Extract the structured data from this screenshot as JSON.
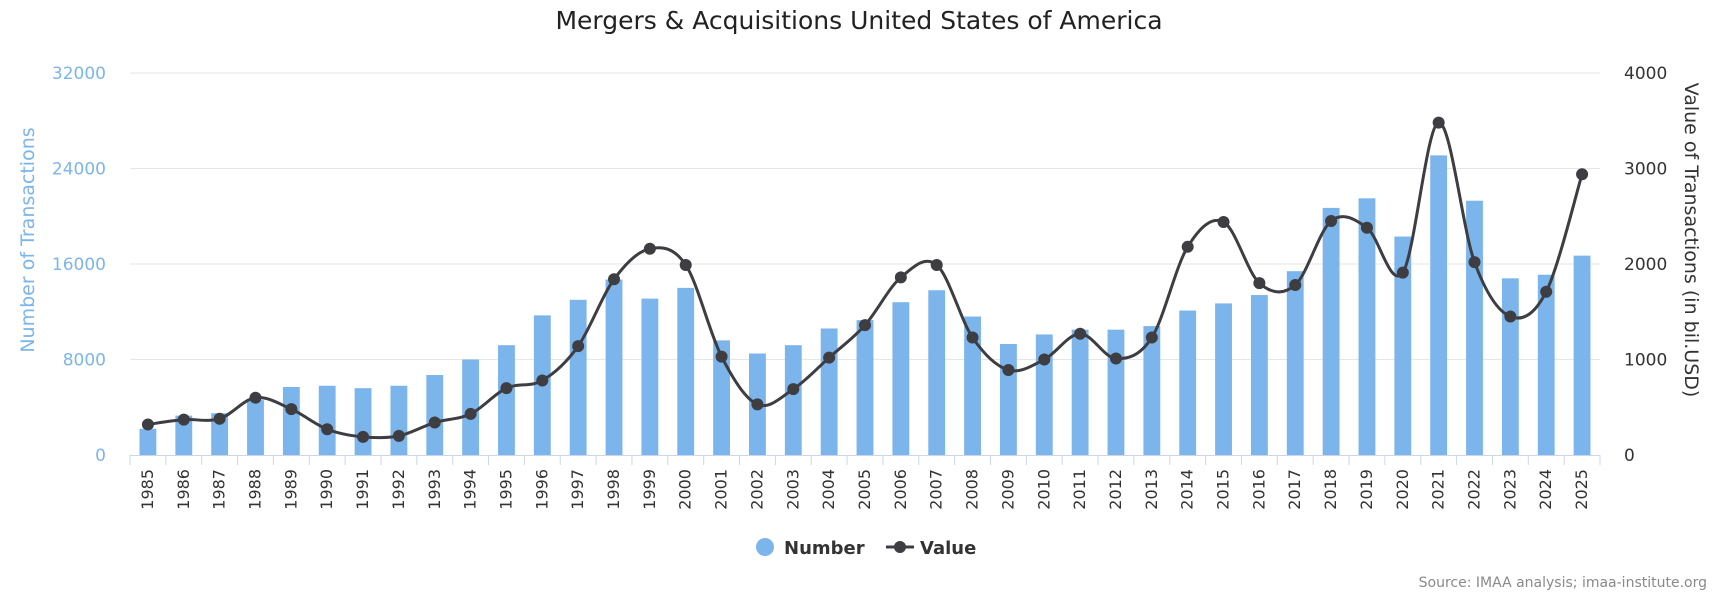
{
  "chart_data": {
    "type": "bar+line",
    "title": "Mergers & Acquisitions United States of America",
    "categories": [
      "1985",
      "1986",
      "1987",
      "1988",
      "1989",
      "1990",
      "1991",
      "1992",
      "1993",
      "1994",
      "1995",
      "1996",
      "1997",
      "1998",
      "1999",
      "2000",
      "2001",
      "2002",
      "2003",
      "2004",
      "2005",
      "2006",
      "2007",
      "2008",
      "2009",
      "2010",
      "2011",
      "2012",
      "2013",
      "2014",
      "2015",
      "2016",
      "2017",
      "2018",
      "2019",
      "2020",
      "2021",
      "2022",
      "2023",
      "2024",
      "2025"
    ],
    "series": [
      {
        "name": "Number",
        "type": "bar",
        "axis": "left",
        "color": "#7cb5ec",
        "values": [
          2200,
          3300,
          3500,
          4600,
          5700,
          5800,
          5600,
          5800,
          6700,
          8000,
          9200,
          11700,
          13000,
          14700,
          13100,
          14000,
          9600,
          8500,
          9200,
          10600,
          11300,
          12800,
          13800,
          11600,
          9300,
          10100,
          10500,
          10500,
          10800,
          12100,
          12700,
          13400,
          15400,
          20700,
          21500,
          18300,
          25100,
          21300,
          14800,
          15100,
          16700
        ]
      },
      {
        "name": "Value",
        "type": "spline",
        "axis": "right",
        "color": "#3d3d42",
        "values": [
          320,
          370,
          380,
          600,
          480,
          270,
          190,
          200,
          340,
          430,
          700,
          780,
          1140,
          1840,
          2160,
          1990,
          1030,
          530,
          690,
          1020,
          1360,
          1860,
          1990,
          1230,
          890,
          1000,
          1270,
          1010,
          1230,
          2180,
          2440,
          1800,
          1780,
          2450,
          2380,
          1910,
          3480,
          2020,
          1450,
          1710,
          2940
        ]
      }
    ],
    "yleft": {
      "label": "Number of Transactions",
      "ticks": [
        "0",
        "8000",
        "16000",
        "24000",
        "32000"
      ],
      "ylim": [
        0,
        32000
      ]
    },
    "yright": {
      "label": "Value of Transactions (in bil.USD)",
      "ticks": [
        "0",
        "1000",
        "2000",
        "3000",
        "4000"
      ],
      "ylim": [
        0,
        4000
      ]
    },
    "legend": {
      "placement": "bottom-center",
      "items": [
        "Number",
        "Value"
      ]
    },
    "credits": "Source: IMAA analysis; imaa-institute.org"
  }
}
